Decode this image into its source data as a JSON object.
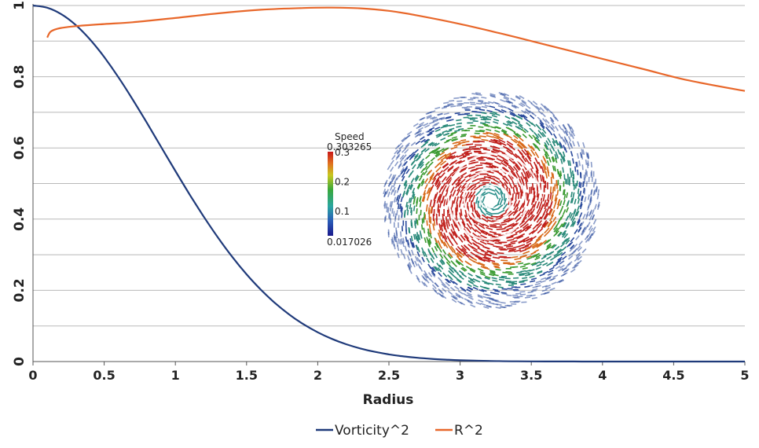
{
  "chart_data": {
    "type": "line",
    "title": "",
    "xlabel": "Radius",
    "ylabel": "",
    "xlim": [
      0,
      5
    ],
    "ylim": [
      0,
      1
    ],
    "xticks": [
      "0",
      "0.5",
      "1",
      "1.5",
      "2",
      "2.5",
      "3",
      "3.5",
      "4",
      "4.5",
      "5"
    ],
    "yticks": [
      "0",
      "0.2",
      "0.4",
      "0.6",
      "0.8",
      "1"
    ],
    "grid": true,
    "legend_position": "bottom-center",
    "series": [
      {
        "name": "Vorticity^2",
        "color": "#1f3a7a",
        "x": [
          0,
          0.1,
          0.2,
          0.3,
          0.4,
          0.5,
          0.6,
          0.7,
          0.8,
          0.9,
          1.0,
          1.1,
          1.2,
          1.3,
          1.4,
          1.5,
          1.6,
          1.7,
          1.8,
          1.9,
          2.0,
          2.1,
          2.2,
          2.3,
          2.4,
          2.5,
          2.6,
          2.7,
          2.8,
          2.9,
          3.0,
          3.2,
          3.4,
          3.6,
          3.8,
          4.0,
          4.5,
          5.0
        ],
        "y": [
          1.0,
          0.993,
          0.973,
          0.941,
          0.898,
          0.846,
          0.787,
          0.722,
          0.653,
          0.583,
          0.613,
          0.545,
          0.477,
          0.411,
          0.349,
          0.292,
          0.241,
          0.196,
          0.157,
          0.124,
          0.097,
          0.075,
          0.057,
          0.043,
          0.032,
          0.024,
          0.017,
          0.012,
          0.009,
          0.006,
          0.004,
          0.002,
          0.001,
          0.0005,
          0.0002,
          0.0001,
          0.0,
          0.0
        ]
      },
      {
        "name": "R^2",
        "color": "#e8672a",
        "x": [
          0.1,
          0.12,
          0.15,
          0.2,
          0.3,
          0.5,
          0.7,
          1.0,
          1.3,
          1.6,
          1.9,
          2.1,
          2.3,
          2.5,
          2.7,
          3.0,
          3.3,
          3.6,
          4.0,
          4.3,
          4.6,
          5.0
        ],
        "y": [
          0.91,
          0.925,
          0.932,
          0.937,
          0.942,
          0.948,
          0.953,
          0.965,
          0.978,
          0.988,
          0.993,
          0.994,
          0.992,
          0.985,
          0.972,
          0.948,
          0.92,
          0.89,
          0.85,
          0.82,
          0.79,
          0.76
        ]
      }
    ],
    "inset": {
      "colorbar_title": "Speed",
      "colorbar_max": "0.303265",
      "colorbar_min": "0.017026",
      "colorbar_ticks": [
        "0.3",
        "0.2",
        "0.1"
      ],
      "colorbar_tick_values": [
        0.3,
        0.2,
        0.1
      ],
      "colorbar_range": [
        0.017026,
        0.303265
      ]
    }
  }
}
